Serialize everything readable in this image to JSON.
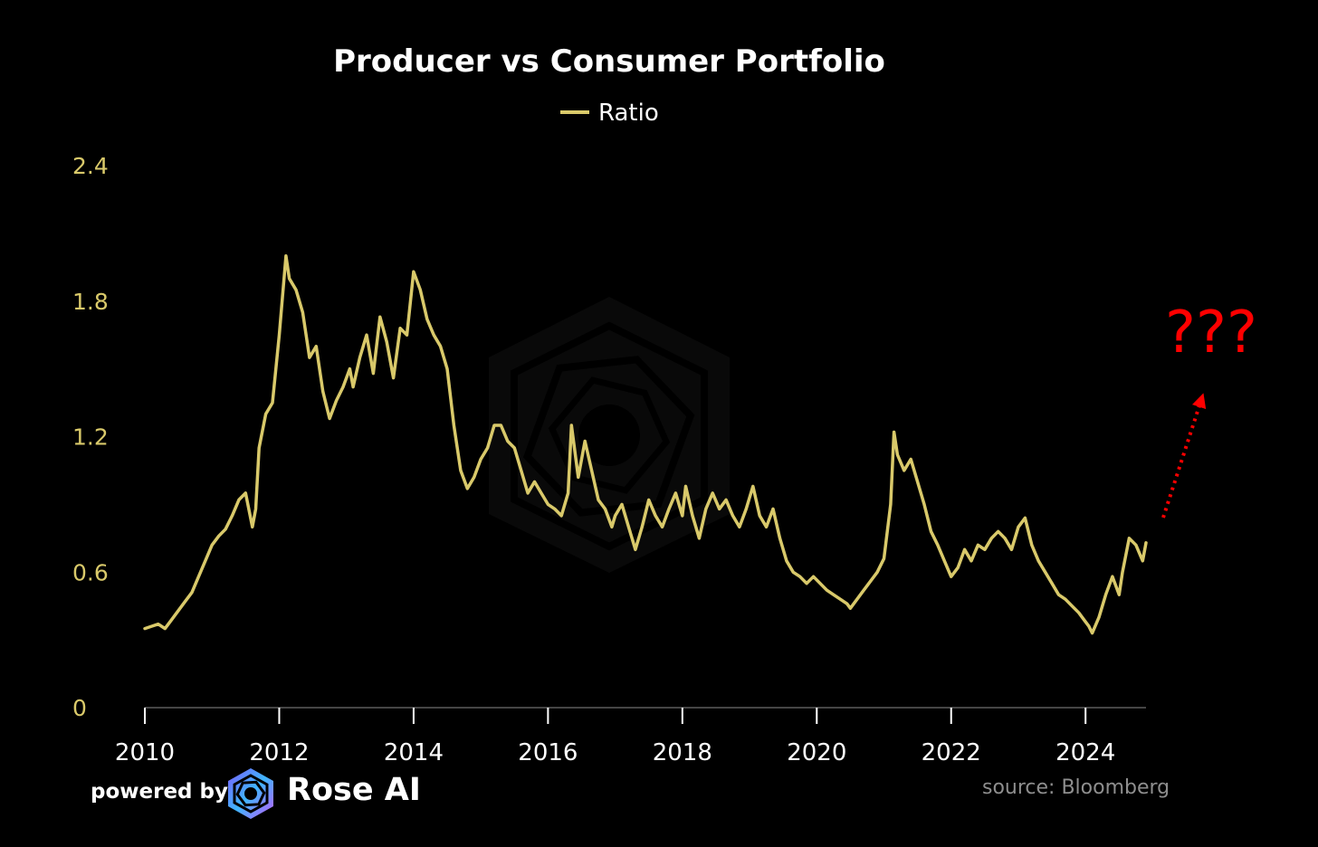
{
  "chart_data": {
    "type": "line",
    "title": "Producer vs Consumer Portfolio",
    "xlabel": "",
    "ylabel": "",
    "xlim": [
      2010,
      2024.9
    ],
    "ylim": [
      0,
      2.4
    ],
    "yticks": [
      "0",
      "0.6",
      "1.2",
      "1.8",
      "2.4"
    ],
    "xticks": [
      "2010",
      "2012",
      "2014",
      "2016",
      "2018",
      "2020",
      "2022",
      "2024"
    ],
    "legend": "top-center",
    "grid": false,
    "series": [
      {
        "name": "Ratio",
        "color": "#d9c96a",
        "points": [
          [
            2010.0,
            0.35
          ],
          [
            2010.1,
            0.36
          ],
          [
            2010.2,
            0.37
          ],
          [
            2010.3,
            0.35
          ],
          [
            2010.4,
            0.39
          ],
          [
            2010.5,
            0.43
          ],
          [
            2010.6,
            0.47
          ],
          [
            2010.7,
            0.51
          ],
          [
            2010.8,
            0.58
          ],
          [
            2010.9,
            0.65
          ],
          [
            2011.0,
            0.72
          ],
          [
            2011.1,
            0.76
          ],
          [
            2011.2,
            0.79
          ],
          [
            2011.3,
            0.85
          ],
          [
            2011.4,
            0.92
          ],
          [
            2011.5,
            0.95
          ],
          [
            2011.6,
            0.8
          ],
          [
            2011.65,
            0.88
          ],
          [
            2011.7,
            1.15
          ],
          [
            2011.8,
            1.3
          ],
          [
            2011.9,
            1.35
          ],
          [
            2012.0,
            1.65
          ],
          [
            2012.1,
            2.0
          ],
          [
            2012.15,
            1.9
          ],
          [
            2012.25,
            1.85
          ],
          [
            2012.35,
            1.75
          ],
          [
            2012.45,
            1.55
          ],
          [
            2012.55,
            1.6
          ],
          [
            2012.65,
            1.4
          ],
          [
            2012.75,
            1.28
          ],
          [
            2012.85,
            1.36
          ],
          [
            2012.95,
            1.42
          ],
          [
            2013.05,
            1.5
          ],
          [
            2013.1,
            1.42
          ],
          [
            2013.2,
            1.55
          ],
          [
            2013.3,
            1.65
          ],
          [
            2013.4,
            1.48
          ],
          [
            2013.5,
            1.73
          ],
          [
            2013.6,
            1.62
          ],
          [
            2013.7,
            1.46
          ],
          [
            2013.8,
            1.68
          ],
          [
            2013.9,
            1.65
          ],
          [
            2014.0,
            1.93
          ],
          [
            2014.1,
            1.85
          ],
          [
            2014.2,
            1.72
          ],
          [
            2014.3,
            1.65
          ],
          [
            2014.4,
            1.6
          ],
          [
            2014.5,
            1.5
          ],
          [
            2014.6,
            1.25
          ],
          [
            2014.7,
            1.05
          ],
          [
            2014.8,
            0.97
          ],
          [
            2014.9,
            1.02
          ],
          [
            2015.0,
            1.1
          ],
          [
            2015.1,
            1.15
          ],
          [
            2015.2,
            1.25
          ],
          [
            2015.3,
            1.25
          ],
          [
            2015.4,
            1.18
          ],
          [
            2015.5,
            1.15
          ],
          [
            2015.6,
            1.05
          ],
          [
            2015.7,
            0.95
          ],
          [
            2015.8,
            1.0
          ],
          [
            2015.9,
            0.95
          ],
          [
            2016.0,
            0.9
          ],
          [
            2016.1,
            0.88
          ],
          [
            2016.2,
            0.85
          ],
          [
            2016.3,
            0.95
          ],
          [
            2016.35,
            1.25
          ],
          [
            2016.45,
            1.02
          ],
          [
            2016.55,
            1.18
          ],
          [
            2016.65,
            1.05
          ],
          [
            2016.75,
            0.92
          ],
          [
            2016.85,
            0.88
          ],
          [
            2016.95,
            0.8
          ],
          [
            2017.0,
            0.85
          ],
          [
            2017.1,
            0.9
          ],
          [
            2017.2,
            0.8
          ],
          [
            2017.3,
            0.7
          ],
          [
            2017.4,
            0.8
          ],
          [
            2017.5,
            0.92
          ],
          [
            2017.6,
            0.85
          ],
          [
            2017.7,
            0.8
          ],
          [
            2017.8,
            0.88
          ],
          [
            2017.9,
            0.95
          ],
          [
            2018.0,
            0.85
          ],
          [
            2018.05,
            0.98
          ],
          [
            2018.15,
            0.85
          ],
          [
            2018.25,
            0.75
          ],
          [
            2018.35,
            0.88
          ],
          [
            2018.45,
            0.95
          ],
          [
            2018.55,
            0.88
          ],
          [
            2018.65,
            0.92
          ],
          [
            2018.75,
            0.85
          ],
          [
            2018.85,
            0.8
          ],
          [
            2018.95,
            0.88
          ],
          [
            2019.05,
            0.98
          ],
          [
            2019.15,
            0.85
          ],
          [
            2019.25,
            0.8
          ],
          [
            2019.35,
            0.88
          ],
          [
            2019.45,
            0.75
          ],
          [
            2019.55,
            0.65
          ],
          [
            2019.65,
            0.6
          ],
          [
            2019.75,
            0.58
          ],
          [
            2019.85,
            0.55
          ],
          [
            2019.95,
            0.58
          ],
          [
            2020.05,
            0.55
          ],
          [
            2020.15,
            0.52
          ],
          [
            2020.25,
            0.5
          ],
          [
            2020.35,
            0.48
          ],
          [
            2020.45,
            0.46
          ],
          [
            2020.5,
            0.44
          ],
          [
            2020.6,
            0.48
          ],
          [
            2020.7,
            0.52
          ],
          [
            2020.8,
            0.56
          ],
          [
            2020.9,
            0.6
          ],
          [
            2021.0,
            0.66
          ],
          [
            2021.05,
            0.78
          ],
          [
            2021.1,
            0.9
          ],
          [
            2021.15,
            1.22
          ],
          [
            2021.2,
            1.12
          ],
          [
            2021.3,
            1.05
          ],
          [
            2021.4,
            1.1
          ],
          [
            2021.5,
            1.0
          ],
          [
            2021.6,
            0.9
          ],
          [
            2021.7,
            0.78
          ],
          [
            2021.8,
            0.72
          ],
          [
            2021.9,
            0.65
          ],
          [
            2022.0,
            0.58
          ],
          [
            2022.1,
            0.62
          ],
          [
            2022.2,
            0.7
          ],
          [
            2022.3,
            0.65
          ],
          [
            2022.4,
            0.72
          ],
          [
            2022.5,
            0.7
          ],
          [
            2022.6,
            0.75
          ],
          [
            2022.7,
            0.78
          ],
          [
            2022.8,
            0.75
          ],
          [
            2022.9,
            0.7
          ],
          [
            2023.0,
            0.8
          ],
          [
            2023.1,
            0.84
          ],
          [
            2023.2,
            0.72
          ],
          [
            2023.3,
            0.65
          ],
          [
            2023.4,
            0.6
          ],
          [
            2023.5,
            0.55
          ],
          [
            2023.6,
            0.5
          ],
          [
            2023.7,
            0.48
          ],
          [
            2023.8,
            0.45
          ],
          [
            2023.9,
            0.42
          ],
          [
            2024.0,
            0.38
          ],
          [
            2024.05,
            0.36
          ],
          [
            2024.1,
            0.33
          ],
          [
            2024.2,
            0.4
          ],
          [
            2024.3,
            0.5
          ],
          [
            2024.4,
            0.58
          ],
          [
            2024.5,
            0.5
          ],
          [
            2024.55,
            0.6
          ],
          [
            2024.65,
            0.75
          ],
          [
            2024.75,
            0.72
          ],
          [
            2024.85,
            0.65
          ],
          [
            2024.9,
            0.73
          ]
        ]
      }
    ],
    "annotations": [
      {
        "text": "???",
        "color": "#ff0000",
        "arrow": "dotted, pointing up-right"
      }
    ]
  },
  "footer": {
    "powered_by": "powered by",
    "brand": "Rose AI",
    "source": "source: Bloomberg"
  }
}
